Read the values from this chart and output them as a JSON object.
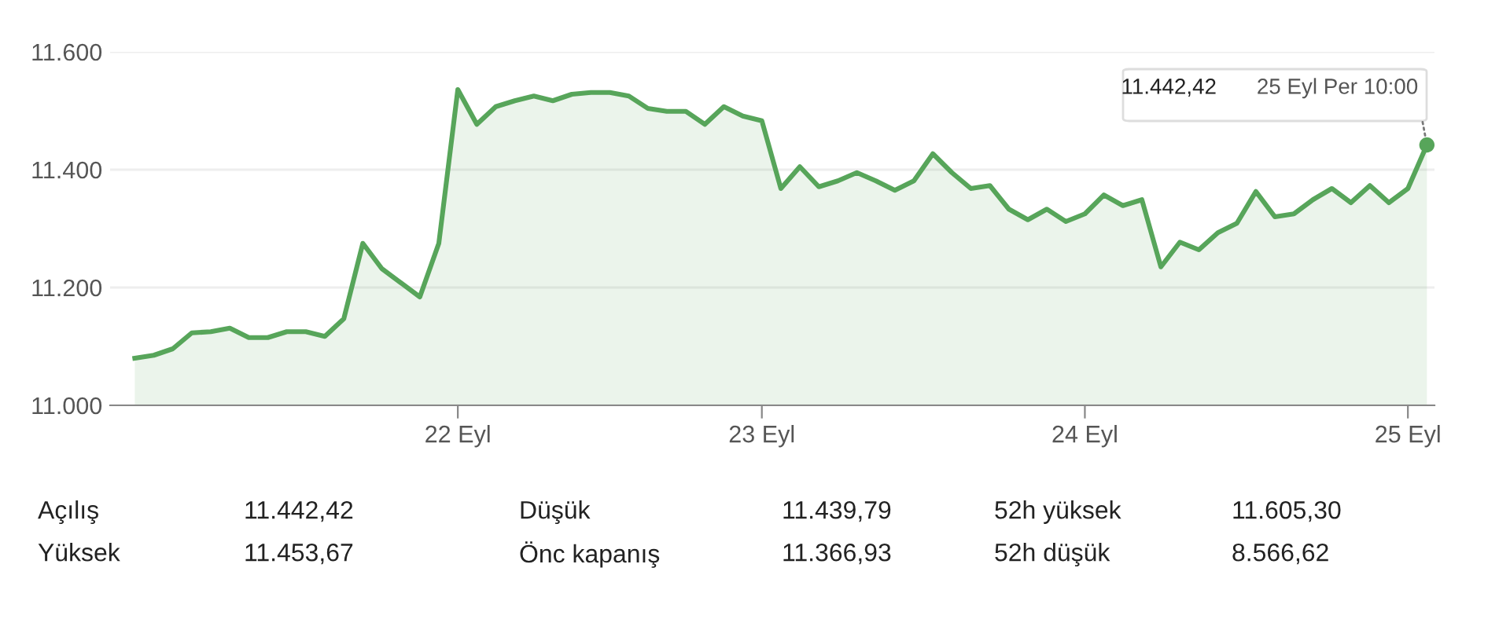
{
  "chart_data": {
    "type": "area",
    "categories": [
      null,
      null,
      null,
      null,
      null,
      null,
      null,
      null,
      null,
      null,
      null,
      null,
      null,
      null,
      null,
      null,
      null,
      "22 Eyl",
      null,
      null,
      null,
      null,
      null,
      null,
      null,
      null,
      null,
      null,
      null,
      null,
      null,
      null,
      null,
      "23 Eyl",
      null,
      null,
      null,
      null,
      null,
      null,
      null,
      null,
      null,
      null,
      null,
      null,
      null,
      null,
      null,
      null,
      "24 Eyl",
      null,
      null,
      null,
      null,
      null,
      null,
      null,
      null,
      null,
      null,
      null,
      null,
      null,
      null,
      null,
      null,
      "25 Eyl",
      null
    ],
    "series": [
      {
        "color": "#57a55a",
        "values": [
          11080,
          11085,
          11096,
          11123,
          11125,
          11131,
          11115,
          11115,
          11125,
          11125,
          11117,
          11147,
          11275,
          11232,
          11208,
          11184,
          11275,
          11536,
          11477,
          11507,
          11517,
          11525,
          11517,
          11528,
          11531,
          11531,
          11525,
          11504,
          11499,
          11499,
          11477,
          11507,
          11491,
          11483,
          11368,
          11405,
          11371,
          11381,
          11395,
          11381,
          11365,
          11381,
          11427,
          11395,
          11368,
          11373,
          11333,
          11315,
          11333,
          11312,
          11325,
          11357,
          11339,
          11349,
          11235,
          11277,
          11264,
          11293,
          11309,
          11363,
          11320,
          11325,
          11349,
          11368,
          11344,
          11373,
          11344,
          11368,
          11442
        ]
      }
    ],
    "ylim": [
      11000,
      11600
    ],
    "yticks": [
      {
        "value": 11000,
        "label": "11.000"
      },
      {
        "value": 11200,
        "label": "11.200"
      },
      {
        "value": 11400,
        "label": "11.400"
      },
      {
        "value": 11600,
        "label": "11.600"
      }
    ],
    "grid": "y",
    "annotations": [
      "11.442,42",
      "25 Eyl Per 10:00",
      "Açılış",
      "11.442,42",
      "Düşük",
      "11.439,79",
      "52h yüksek",
      "11.605,30",
      "Yüksek",
      "11.453,67",
      "Önc kapanış",
      "11.366,93",
      "52h düşük",
      "8.566,62"
    ]
  }
}
